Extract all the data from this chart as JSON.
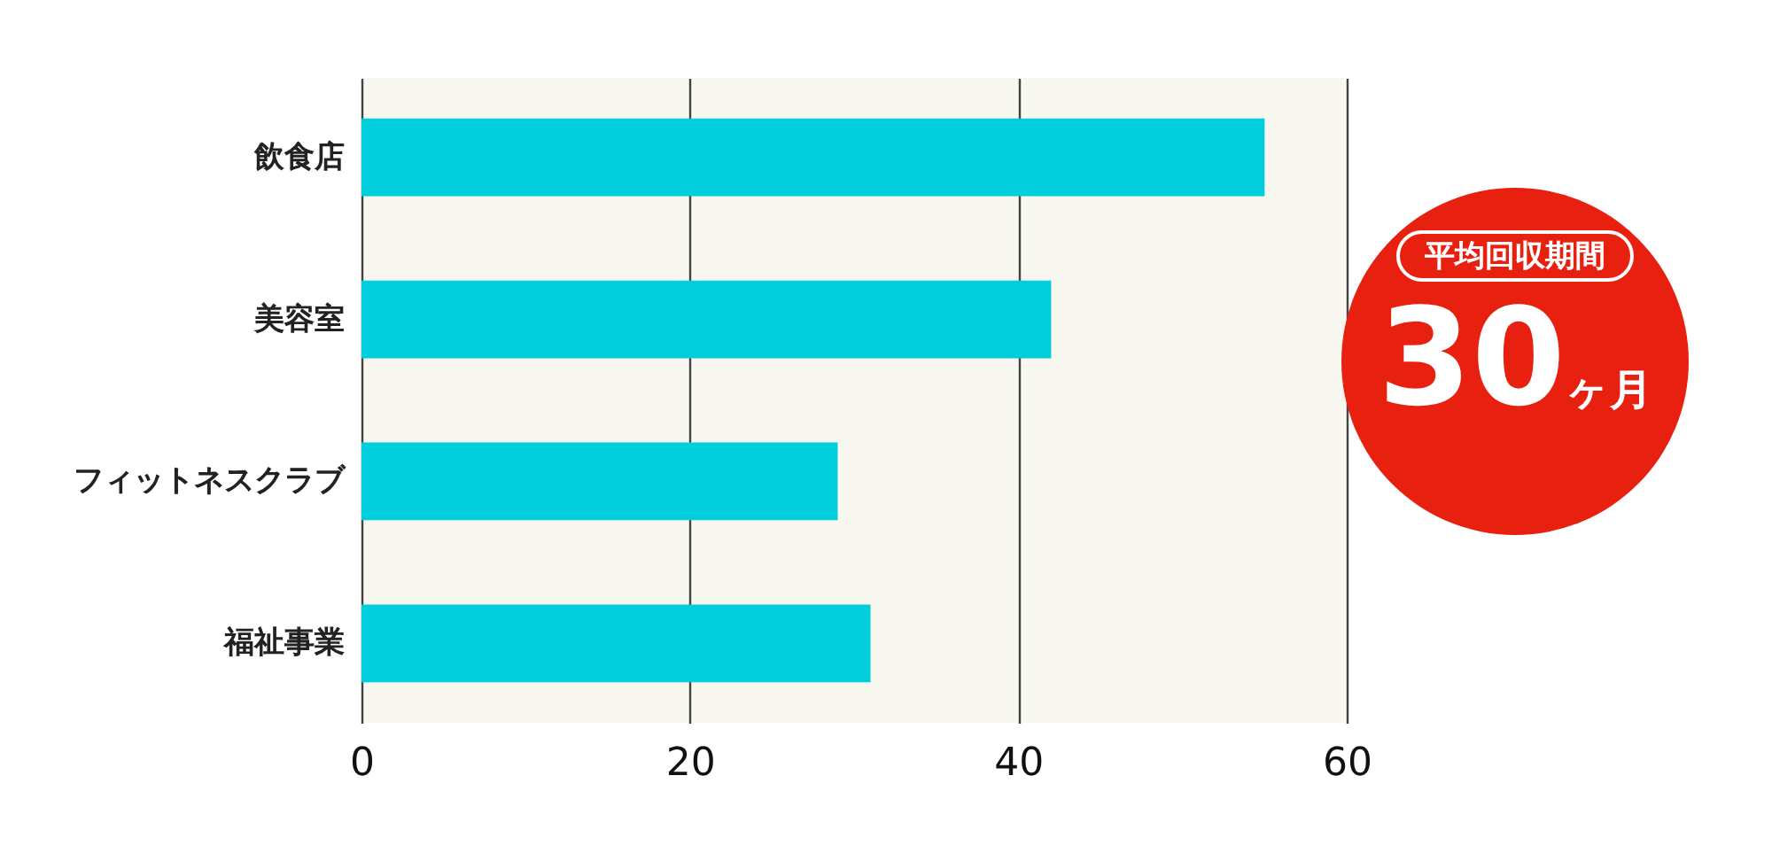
{
  "chart_data": {
    "type": "bar",
    "orientation": "horizontal",
    "categories": [
      "飲食店",
      "美容室",
      "フィットネスクラブ",
      "福祉事業"
    ],
    "values": [
      55,
      42,
      29,
      31
    ],
    "color": "#00cedc",
    "xlim": [
      0,
      60
    ],
    "xticks": [
      0,
      20,
      40,
      60
    ],
    "grid": "x",
    "annotations": [
      "平均回収期間",
      "30ヶ月"
    ]
  }
}
